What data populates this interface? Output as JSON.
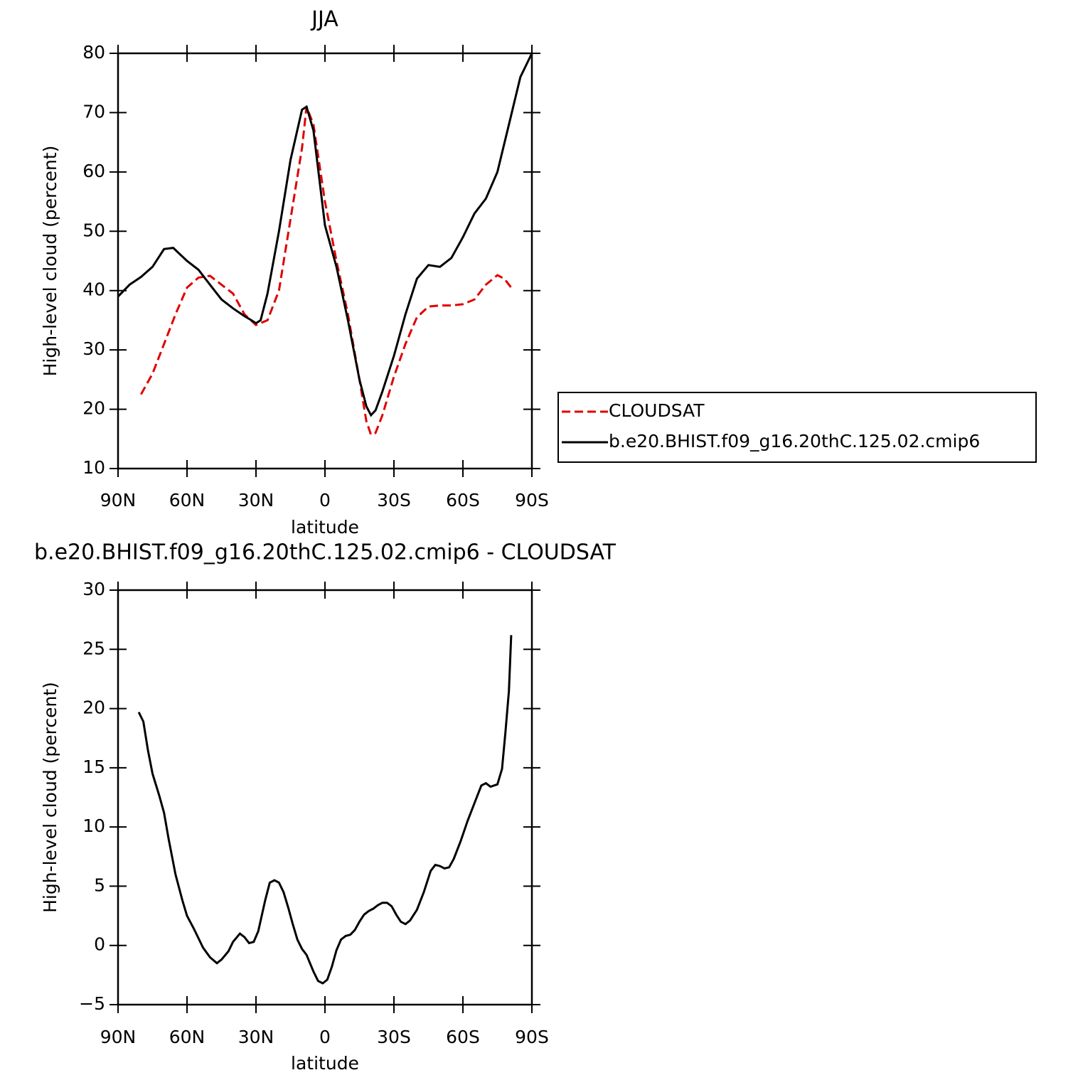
{
  "chart_data": [
    {
      "type": "line",
      "title": "JJA",
      "xlabel": "latitude",
      "ylabel": "High-level cloud (percent)",
      "xlim": [
        90,
        -90
      ],
      "xticks": [
        {
          "value": 90,
          "label": "90N"
        },
        {
          "value": 60,
          "label": "60N"
        },
        {
          "value": 30,
          "label": "30N"
        },
        0,
        {
          "value": -30,
          "label": "30S"
        },
        {
          "value": -60,
          "label": "60S"
        },
        {
          "value": -90,
          "label": "90S"
        }
      ],
      "ylim": [
        10,
        80
      ],
      "yticks": [
        10,
        20,
        30,
        40,
        50,
        60,
        70,
        80
      ],
      "legend": "right",
      "series": [
        {
          "name": "CLOUDSAT",
          "color": "#e00000",
          "dash": "dashed",
          "x": [
            80,
            75,
            70,
            65,
            60,
            55,
            50,
            45,
            40,
            35,
            30,
            25,
            20,
            15,
            10,
            8,
            5,
            0,
            -5,
            -10,
            -15,
            -18,
            -20,
            -22,
            -25,
            -30,
            -35,
            -40,
            -45,
            -50,
            -55,
            -60,
            -65,
            -70,
            -75,
            -78,
            -81
          ],
          "values": [
            22.5,
            26,
            31,
            36,
            40.5,
            42.2,
            42.5,
            41,
            39.5,
            36,
            34.2,
            35,
            40,
            52,
            64,
            71,
            68,
            55,
            45,
            36,
            25,
            18,
            15.7,
            16,
            19,
            25.5,
            31,
            35.5,
            37.3,
            37.5,
            37.5,
            37.7,
            38.5,
            41,
            42.6,
            42,
            40.5
          ]
        },
        {
          "name": "b.e20.BHIST.f09_g16.20thC.125.02.cmip6",
          "color": "#000000",
          "dash": "solid",
          "x": [
            90,
            85,
            80,
            75,
            70,
            66,
            60,
            55,
            50,
            45,
            40,
            35,
            32,
            30,
            28,
            25,
            20,
            15,
            10,
            8,
            5,
            0,
            -5,
            -10,
            -15,
            -18,
            -20,
            -22,
            -25,
            -30,
            -35,
            -40,
            -45,
            -50,
            -55,
            -60,
            -65,
            -70,
            -75,
            -80,
            -85,
            -90
          ],
          "values": [
            39,
            41,
            42.3,
            44,
            47,
            47.2,
            45,
            43.5,
            41,
            38.5,
            37,
            35.7,
            35,
            34.5,
            35,
            39.5,
            50,
            62,
            70.5,
            71,
            67,
            51,
            44,
            35,
            25,
            20.5,
            19,
            19.8,
            23,
            29,
            36,
            42,
            44.3,
            44,
            45.5,
            49,
            53,
            55.5,
            60,
            68,
            76,
            80
          ]
        }
      ]
    },
    {
      "type": "line",
      "title": "b.e20.BHIST.f09_g16.20thC.125.02.cmip6 - CLOUDSAT",
      "xlabel": "latitude",
      "ylabel": "High-level cloud (percent)",
      "xlim": [
        90,
        -90
      ],
      "xticks": [
        {
          "value": 90,
          "label": "90N"
        },
        {
          "value": 60,
          "label": "60N"
        },
        {
          "value": 30,
          "label": "30N"
        },
        0,
        {
          "value": -30,
          "label": "30S"
        },
        {
          "value": -60,
          "label": "60S"
        },
        {
          "value": -90,
          "label": "90S"
        }
      ],
      "ylim": [
        -5,
        30
      ],
      "yticks": [
        {
          "value": -5,
          "label": "−5"
        },
        0,
        5,
        10,
        15,
        20,
        25,
        30
      ],
      "series": [
        {
          "color": "#000000",
          "dash": "solid",
          "x": [
            81,
            79,
            77,
            75,
            72,
            70,
            68,
            65,
            62,
            60,
            57,
            53,
            50,
            47,
            45,
            42,
            40,
            37,
            35,
            33,
            31,
            29,
            26,
            24,
            22,
            20,
            18,
            16,
            14,
            12,
            10,
            8,
            5,
            3,
            1,
            -1,
            -3,
            -5,
            -7,
            -9,
            -11,
            -13,
            -15,
            -17,
            -19,
            -21,
            -23,
            -25,
            -27,
            -29,
            -31,
            -33,
            -35,
            -37,
            -40,
            -43,
            -46,
            -48,
            -50,
            -52,
            -54,
            -56,
            -59,
            -62,
            -66,
            -68,
            -70,
            -72,
            -75,
            -77,
            -78.5,
            -80,
            -81
          ],
          "values": [
            19.7,
            18.9,
            16.5,
            14.5,
            12.6,
            11.2,
            9,
            6,
            3.8,
            2.5,
            1.4,
            -0.2,
            -1,
            -1.5,
            -1.2,
            -0.5,
            0.3,
            1,
            0.7,
            0.2,
            0.3,
            1.2,
            3.8,
            5.3,
            5.5,
            5.3,
            4.5,
            3.2,
            1.8,
            0.5,
            -0.3,
            -0.8,
            -2.2,
            -3,
            -3.2,
            -2.9,
            -1.8,
            -0.4,
            0.5,
            0.8,
            0.9,
            1.3,
            2,
            2.6,
            2.9,
            3.1,
            3.4,
            3.6,
            3.6,
            3.3,
            2.6,
            2,
            1.8,
            2.1,
            3,
            4.5,
            6.3,
            6.8,
            6.7,
            6.5,
            6.6,
            7.3,
            8.8,
            10.5,
            12.5,
            13.5,
            13.7,
            13.4,
            13.6,
            14.9,
            18,
            21.5,
            26.2
          ]
        }
      ]
    }
  ]
}
